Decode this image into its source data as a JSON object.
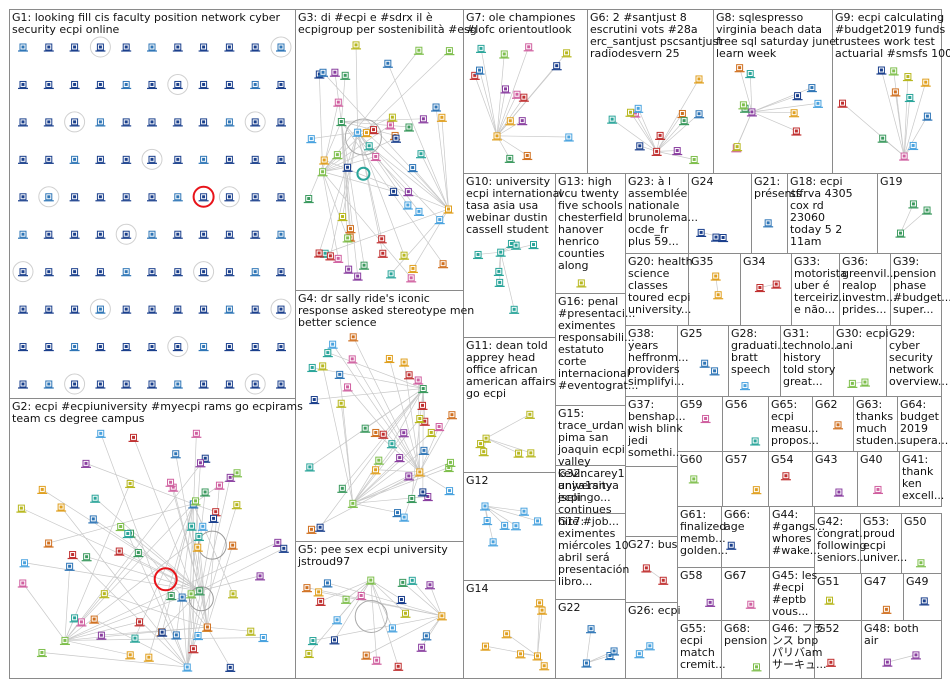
{
  "groups": [
    {
      "id": "G1",
      "lines": [
        "G1: looking fill cis faculty position network cyber",
        "security ecpi online"
      ]
    },
    {
      "id": "G2",
      "lines": [
        "G2: ecpi #ecpiuniversity #myecpi rams go ecpirams",
        "team cs degree campus"
      ]
    },
    {
      "id": "G3",
      "lines": [
        "G3: di #ecpi e #sdrx il è",
        "ecpigroup per sostenibilità #esg"
      ]
    },
    {
      "id": "G4",
      "lines": [
        "G4: dr sally ride's iconic",
        "response asked stereotype men",
        "better science"
      ]
    },
    {
      "id": "G5",
      "lines": [
        "G5: pee sex ecpi university",
        "jstroud97"
      ]
    },
    {
      "id": "G7",
      "lines": [
        "G7: ole championes",
        "#lofc orientoutlook"
      ]
    },
    {
      "id": "G6",
      "lines": [
        "G6: 2 #santjust 8",
        "escrutini vots #28a",
        "erc_santjust pscsantjust",
        "radiodesvern 25"
      ]
    },
    {
      "id": "G8",
      "lines": [
        "G8: sqlespresso",
        "virginia beach data",
        "free sql saturday june",
        "learn week"
      ]
    },
    {
      "id": "G9",
      "lines": [
        "G9: ecpi calculating",
        "#budget2019 funds",
        "trustees work test",
        "actuarial #smsfs 100"
      ]
    },
    {
      "id": "G10",
      "lines": [
        "G10: university",
        "ecpi international",
        "tasa asia usa",
        "webinar dustin",
        "cassell student"
      ]
    },
    {
      "id": "G13",
      "lines": [
        "G13: high",
        "vcu twenty",
        "five schools",
        "chesterfield",
        "hanover",
        "henrico",
        "counties",
        "along"
      ]
    },
    {
      "id": "G23",
      "lines": [
        "G23: à l",
        "assemblée",
        "nationale",
        "brunolema...",
        "ocde_fr",
        "plus 59..."
      ]
    },
    {
      "id": "G24",
      "lines": [
        "G24"
      ]
    },
    {
      "id": "G21",
      "lines": [
        "G21:",
        "présents"
      ]
    },
    {
      "id": "G18",
      "lines": [
        "G18: ecpi",
        "sffrva 4305",
        "cox rd",
        "23060",
        "today 5 2",
        "11am"
      ]
    },
    {
      "id": "G19",
      "lines": [
        "G19"
      ]
    },
    {
      "id": "G20",
      "lines": [
        "G20: health",
        "science",
        "classes",
        "toured ecpi",
        "university..."
      ]
    },
    {
      "id": "G35",
      "lines": [
        "G35"
      ]
    },
    {
      "id": "G34",
      "lines": [
        "G34"
      ]
    },
    {
      "id": "G33",
      "lines": [
        "G33:",
        "motorista",
        "uber é",
        "terceiriz...",
        "e não..."
      ]
    },
    {
      "id": "G36",
      "lines": [
        "G36:",
        "greenvil...",
        "realop",
        "investm...",
        "prides..."
      ]
    },
    {
      "id": "G39",
      "lines": [
        "G39:",
        "pension",
        "phase",
        "#budget...",
        "super..."
      ]
    },
    {
      "id": "G11",
      "lines": [
        "G11: dean told",
        "apprey head",
        "office african",
        "american affairs",
        "go ecpi"
      ]
    },
    {
      "id": "G16",
      "lines": [
        "G16: penal",
        "#presentaci...",
        "eximentes",
        "responsabili...",
        "estatuto",
        "corte",
        "internacional",
        "#eventograt..."
      ]
    },
    {
      "id": "G38",
      "lines": [
        "G38:",
        "years",
        "heffronm...",
        "providers",
        "simplifyi..."
      ]
    },
    {
      "id": "G25",
      "lines": [
        "G25"
      ]
    },
    {
      "id": "G28",
      "lines": [
        "G28:",
        "graduati...",
        "bratt",
        "speech"
      ]
    },
    {
      "id": "G31",
      "lines": [
        "G31:",
        "technolo...",
        "history",
        "told story",
        "great..."
      ]
    },
    {
      "id": "G30",
      "lines": [
        "G30: ecpi",
        "ani"
      ]
    },
    {
      "id": "G29",
      "lines": [
        "G29:",
        "cyber",
        "security",
        "network",
        "overview..."
      ]
    },
    {
      "id": "G15",
      "lines": [
        "G15:",
        "trace_urdan",
        "pima san",
        "joaquin ecpi",
        "valley",
        "kevincarey1",
        "anya1anya",
        "jselingo..."
      ]
    },
    {
      "id": "G37",
      "lines": [
        "G37:",
        "benshap...",
        "wish blink",
        "jedi",
        "somethi..."
      ]
    },
    {
      "id": "G59",
      "lines": [
        "G59"
      ]
    },
    {
      "id": "G56",
      "lines": [
        "G56"
      ]
    },
    {
      "id": "G65",
      "lines": [
        "G65:",
        "ecpi",
        "measu...",
        "propos..."
      ]
    },
    {
      "id": "G62",
      "lines": [
        "G62"
      ]
    },
    {
      "id": "G63",
      "lines": [
        "G63:",
        "thanks",
        "much",
        "studen..."
      ]
    },
    {
      "id": "G64",
      "lines": [
        "G64:",
        "budget",
        "2019",
        "supera..."
      ]
    },
    {
      "id": "G12",
      "lines": [
        "G12"
      ]
    },
    {
      "id": "G32",
      "lines": [
        "G32:",
        "university",
        "ecpi",
        "continues",
        "hire #job..."
      ]
    },
    {
      "id": "G60",
      "lines": [
        "G60"
      ]
    },
    {
      "id": "G57",
      "lines": [
        "G57"
      ]
    },
    {
      "id": "G54",
      "lines": [
        "G54"
      ]
    },
    {
      "id": "G43",
      "lines": [
        "G43"
      ]
    },
    {
      "id": "G40",
      "lines": [
        "G40"
      ]
    },
    {
      "id": "G41",
      "lines": [
        "G41:",
        "thank",
        "ken",
        "excell..."
      ]
    },
    {
      "id": "G17",
      "lines": [
        "G17:",
        "eximentes",
        "miércoles 10",
        "abril será",
        "presentación",
        "libro..."
      ]
    },
    {
      "id": "G61",
      "lines": [
        "G61:",
        "finalized",
        "memb...",
        "golden..."
      ]
    },
    {
      "id": "G66",
      "lines": [
        "G66:",
        "age"
      ]
    },
    {
      "id": "G44",
      "lines": [
        "G44:",
        "#gangs...",
        "whores",
        "#wake..."
      ]
    },
    {
      "id": "G42",
      "lines": [
        "G42:",
        "congrat...",
        "following",
        "seniors..."
      ]
    },
    {
      "id": "G53",
      "lines": [
        "G53:",
        "proud",
        "ecpi",
        "univer..."
      ]
    },
    {
      "id": "G50",
      "lines": [
        "G50"
      ]
    },
    {
      "id": "G14",
      "lines": [
        "G14"
      ]
    },
    {
      "id": "G27",
      "lines": [
        "G27: bus"
      ]
    },
    {
      "id": "G58",
      "lines": [
        "G58"
      ]
    },
    {
      "id": "G67",
      "lines": [
        "G67"
      ]
    },
    {
      "id": "G45",
      "lines": [
        "G45: les",
        "#ecpi",
        "#eptb",
        "vous..."
      ]
    },
    {
      "id": "G51",
      "lines": [
        "G51"
      ]
    },
    {
      "id": "G47",
      "lines": [
        "G47"
      ]
    },
    {
      "id": "G49",
      "lines": [
        "G49"
      ]
    },
    {
      "id": "G22",
      "lines": [
        "G22"
      ]
    },
    {
      "id": "G26",
      "lines": [
        "G26: ecpi"
      ]
    },
    {
      "id": "G55",
      "lines": [
        "G55:",
        "ecpi",
        "match",
        "cremit..."
      ]
    },
    {
      "id": "G68",
      "lines": [
        "G68:",
        "pension"
      ]
    },
    {
      "id": "G46",
      "lines": [
        "G46: フラ",
        "ンス bnp",
        "パリバam",
        "サーキュ..."
      ]
    },
    {
      "id": "G52",
      "lines": [
        "G52"
      ]
    },
    {
      "id": "G48",
      "lines": [
        "G48: both",
        "air"
      ]
    }
  ],
  "colors": {
    "frame": "#8a8a8a",
    "edge": "#c8c8c8",
    "highlight": "#e8141a",
    "node_palette": [
      "#1a3f8c",
      "#2e75b6",
      "#4aa3df",
      "#3c9a5f",
      "#7fbf4d",
      "#e0a020",
      "#c03030",
      "#8a3fa0",
      "#d060a0",
      "#2aa59a",
      "#b8b820",
      "#d07020"
    ]
  }
}
